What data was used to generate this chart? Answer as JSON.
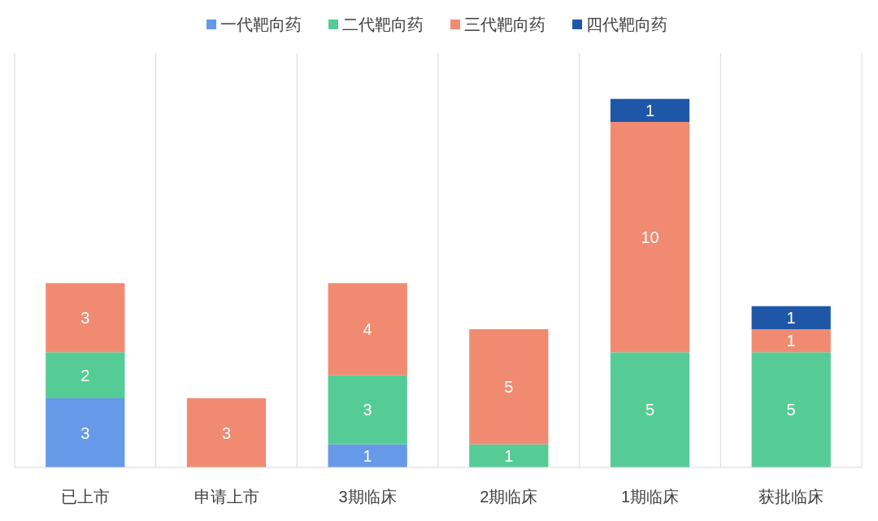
{
  "chart_data": {
    "type": "bar",
    "stacked": true,
    "data_labels": true,
    "grid": "x",
    "legend": "top",
    "categories": [
      "已上市",
      "申请上市",
      "3期临床",
      "2期临床",
      "1期临床",
      "获批临床"
    ],
    "series": [
      {
        "name": "一代靶向药",
        "color": "#6699e8",
        "values": [
          3,
          null,
          1,
          null,
          null,
          null
        ]
      },
      {
        "name": "二代靶向药",
        "color": "#55cc96",
        "values": [
          2,
          null,
          3,
          1,
          5,
          5
        ]
      },
      {
        "name": "三代靶向药",
        "color": "#f08b72",
        "values": [
          3,
          3,
          4,
          5,
          10,
          1
        ]
      },
      {
        "name": "四代靶向药",
        "color": "#1f57a8",
        "values": [
          null,
          null,
          null,
          null,
          1,
          1
        ]
      }
    ]
  }
}
